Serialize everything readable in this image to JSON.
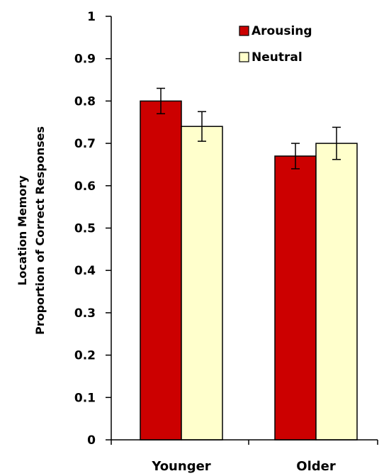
{
  "chart_data": {
    "type": "bar",
    "title": "",
    "xlabel": "",
    "ylabel_lines": [
      "Location Memory",
      "Proportion of Correct Responses"
    ],
    "categories": [
      "Younger",
      "Older"
    ],
    "series": [
      {
        "name": "Arousing",
        "color": "#cc0000",
        "values": [
          0.8,
          0.67
        ],
        "error": [
          0.03,
          0.03
        ]
      },
      {
        "name": "Neutral",
        "color": "#ffffcc",
        "values": [
          0.74,
          0.7
        ],
        "error": [
          0.035,
          0.038
        ]
      }
    ],
    "ylim": [
      0,
      1
    ],
    "yticks": [
      0,
      0.1,
      0.2,
      0.3,
      0.4,
      0.5,
      0.6,
      0.7,
      0.8,
      0.9,
      1
    ],
    "ytick_labels": [
      "0",
      "0.1",
      "0.2",
      "0.3",
      "0.4",
      "0.5",
      "0.6",
      "0.7",
      "0.8",
      "0.9",
      "1"
    ],
    "grid": false,
    "legend_position": "top-right"
  }
}
